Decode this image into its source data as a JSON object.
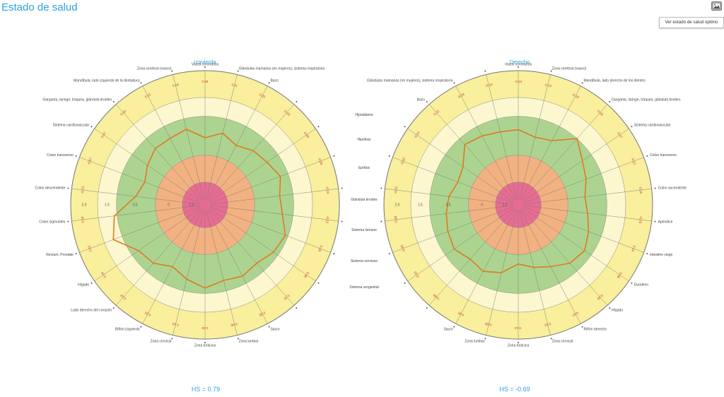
{
  "header": {
    "title": "Estado de salud",
    "image_button_icon": "image-icon",
    "tooltip": "Ver estado de salud óptimo"
  },
  "ring_labels": [
    "2.0",
    "1.5",
    "0.5",
    "0",
    "1.0"
  ],
  "colors": {
    "accent": "#29a3dd",
    "outer": "#f9ef9c",
    "light": "#fcf7cf",
    "green": "#acd490",
    "orange": "#f2b181",
    "pink": "#e86c92",
    "line": "#e07a20"
  },
  "middle_labels": [
    "Hipotálamo",
    "Hipófisis",
    "Epífisis",
    "Glándula tiroides",
    "Sistema inmune",
    "Sistema nervioso",
    "Sistema urogenital"
  ],
  "left_chart": {
    "title": "Izquierda",
    "hs": "HS = 0.79",
    "axes": [
      {
        "label": "Vasos coronarios",
        "value": "0.06",
        "r": 0.5
      },
      {
        "label": "Glándulas mamarias (en mujeres), sistema respiratorio",
        "value": "0.11",
        "r": 0.55
      },
      {
        "label": "Bazo",
        "value": "0.03",
        "r": 0.5
      },
      {
        "label": "",
        "value": "-0.18",
        "r": 0.54
      },
      {
        "label": "",
        "value": "0.09",
        "r": 0.56
      },
      {
        "label": "",
        "value": "-0.09",
        "r": 0.6
      },
      {
        "label": "",
        "value": "-0.24",
        "r": 0.56
      },
      {
        "label": "",
        "value": "-0.12",
        "r": 0.58
      },
      {
        "label": "",
        "value": "0.39",
        "r": 0.64
      },
      {
        "label": "",
        "value": "0.40",
        "r": 0.62
      },
      {
        "label": "",
        "value": "0.16",
        "r": 0.58
      },
      {
        "label": "Sacro",
        "value": "0.08",
        "r": 0.6
      },
      {
        "label": "Zona lumbar",
        "value": "-0.06",
        "r": 0.58
      },
      {
        "label": "Zona torácica",
        "value": "0.32",
        "r": 0.62
      },
      {
        "label": "Zona cervical",
        "value": "0.14",
        "r": 0.57
      },
      {
        "label": "Riñón izquierdo",
        "value": "0.22",
        "r": 0.52
      },
      {
        "label": "Lado derecho del corazón",
        "value": "0.18",
        "r": 0.58
      },
      {
        "label": "Hígado",
        "value": "0.16",
        "r": 0.6
      },
      {
        "label": "Rectum, Prostate",
        "value": "0.61",
        "r": 0.73
      },
      {
        "label": "Colon sigmoideo",
        "value": "0.18",
        "r": 0.68
      },
      {
        "label": "Colon descendente",
        "value": "-0.13",
        "r": 0.52
      },
      {
        "label": "Colon transverso",
        "value": "-0.07",
        "r": 0.48
      },
      {
        "label": "Sistema cardiovascular",
        "value": "0.07",
        "r": 0.52
      },
      {
        "label": "Garganta, laringe, tráquea, glándula tiroides",
        "value": "0.10",
        "r": 0.56
      },
      {
        "label": "Mandíbula, lado izquierdo de la dentadura",
        "value": "0.22",
        "r": 0.56
      },
      {
        "label": "Zona cerebral (vasos)",
        "value": "0.16",
        "r": 0.58
      }
    ]
  },
  "right_chart": {
    "title": "Derecho",
    "hs": "HS = -0.69",
    "axes": [
      {
        "label": "Vasos coronarios",
        "value": "-0.24",
        "r": 0.56
      },
      {
        "label": "Zona cerebral (vasos)",
        "value": "-0.13",
        "r": 0.52
      },
      {
        "label": "Mandíbula, lado derecho de los dientes",
        "value": "-0.18",
        "r": 0.54
      },
      {
        "label": "Garganta, laringe, tráquea, glándula tiroides",
        "value": "-0.33",
        "r": 0.66
      },
      {
        "label": "Sistema cardiovascular",
        "value": "-0.27",
        "r": 0.58
      },
      {
        "label": "Colon transverso",
        "value": "-0.22",
        "r": 0.54
      },
      {
        "label": "Colon ascendente",
        "value": "-0.16",
        "r": 0.5
      },
      {
        "label": "Apéndice",
        "value": "-0.16",
        "r": 0.52
      },
      {
        "label": "Intestino ciego",
        "value": "0.14",
        "r": 0.56
      },
      {
        "label": "Duodeno",
        "value": "-0.06",
        "r": 0.6
      },
      {
        "label": "Hígado",
        "value": "0.08",
        "r": 0.58
      },
      {
        "label": "Riñón derecho",
        "value": "-0.07",
        "r": 0.52
      },
      {
        "label": "Zona cervical",
        "value": "0.03",
        "r": 0.48
      },
      {
        "label": "Zona torácica",
        "value": "-0.14",
        "r": 0.44
      },
      {
        "label": "Zona lumbar",
        "value": "-0.08",
        "r": 0.52
      },
      {
        "label": "Sacro",
        "value": "0.05",
        "r": 0.56
      },
      {
        "label": "",
        "value": "-0.09",
        "r": 0.54
      },
      {
        "label": "",
        "value": "-0.33",
        "r": 0.58
      },
      {
        "label": "",
        "value": "-0.29",
        "r": 0.56
      },
      {
        "label": "",
        "value": "-0.48",
        "r": 0.54
      },
      {
        "label": "",
        "value": "-0.01",
        "r": 0.52
      },
      {
        "label": "",
        "value": "-0.10",
        "r": 0.48
      },
      {
        "label": "",
        "value": "-0.13",
        "r": 0.5
      },
      {
        "label": "Bazo",
        "value": "0.22",
        "r": 0.6
      },
      {
        "label": "Glándulas mamarias (en mujeres), sistema respiratorio",
        "value": "-0.25",
        "r": 0.58
      },
      {
        "label": "",
        "value": "-0.15",
        "r": 0.56
      }
    ]
  }
}
